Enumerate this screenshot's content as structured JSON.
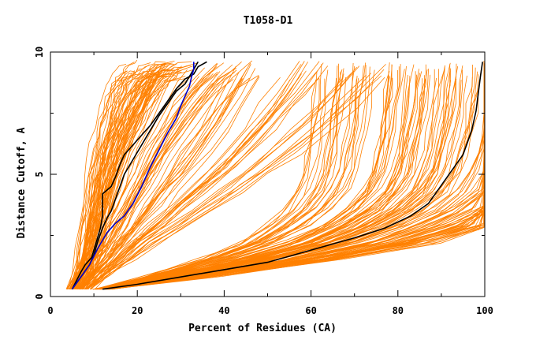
{
  "chart_data": {
    "type": "line",
    "title": "T1058-D1",
    "xlabel": "Percent of Residues (CA)",
    "ylabel": "Distance Cutoff, A",
    "xlim": [
      0,
      100
    ],
    "ylim": [
      0,
      10
    ],
    "x_ticks": [
      "0",
      "20",
      "40",
      "60",
      "80",
      "100"
    ],
    "y_ticks": [
      "0",
      "5",
      "10"
    ],
    "grid": false,
    "legend": "none",
    "colors": {
      "background_series": "#ff8000",
      "highlight_black": "#000000",
      "highlight_blue": "#0000cc"
    },
    "background_groups": [
      {
        "count": 50,
        "x": [
          6,
          8,
          9,
          10,
          11,
          12,
          13,
          14,
          15,
          16,
          17,
          18,
          19,
          20,
          21,
          22,
          23,
          25
        ],
        "y": [
          0.3,
          1.0,
          2.0,
          3.0,
          4.0,
          5.0,
          5.7,
          6.4,
          7.0,
          7.5,
          8.0,
          8.4,
          8.8,
          9.1,
          9.3,
          9.5,
          9.6,
          9.7
        ]
      },
      {
        "count": 40,
        "x": [
          6,
          8,
          10,
          12,
          14,
          16,
          18,
          20,
          22,
          25,
          28,
          31,
          34
        ],
        "y": [
          0.3,
          1.0,
          1.6,
          2.2,
          3.0,
          3.8,
          4.6,
          5.4,
          6.2,
          7.2,
          8.2,
          9.0,
          9.6
        ]
      },
      {
        "count": 35,
        "x": [
          8,
          12,
          16,
          20,
          25,
          30,
          35,
          40,
          45,
          50,
          55,
          60
        ],
        "y": [
          0.3,
          1.0,
          1.6,
          2.3,
          3.0,
          3.8,
          4.6,
          5.4,
          6.3,
          7.3,
          8.4,
          9.6
        ]
      },
      {
        "count": 130,
        "x": [
          12,
          30,
          50,
          65,
          75,
          82,
          87,
          89.5,
          91,
          92,
          93,
          93.5,
          94
        ],
        "y": [
          0.3,
          0.9,
          1.6,
          2.3,
          3.0,
          3.7,
          4.5,
          5.3,
          6.2,
          7.0,
          8.0,
          8.8,
          9.6
        ]
      }
    ],
    "series": [
      {
        "color": "#000000",
        "x": [
          12,
          20,
          30,
          40,
          50,
          60,
          70,
          77,
          83,
          87,
          89,
          91,
          93,
          95,
          96,
          97,
          98,
          98.5,
          99,
          99.5
        ],
        "y": [
          0.3,
          0.5,
          0.8,
          1.1,
          1.4,
          1.9,
          2.4,
          2.8,
          3.3,
          3.8,
          4.3,
          4.8,
          5.3,
          5.8,
          6.3,
          6.8,
          7.6,
          8.3,
          9.0,
          9.6
        ]
      },
      {
        "color": "#000000",
        "x": [
          5,
          7,
          8,
          9.5,
          10.5,
          11.5,
          12,
          12,
          14,
          15,
          16,
          17,
          18,
          20,
          21,
          23,
          25,
          27,
          29,
          31,
          33,
          34,
          36
        ],
        "y": [
          0.3,
          1.0,
          1.3,
          1.6,
          2.2,
          2.8,
          3.3,
          4.2,
          4.5,
          4.9,
          5.4,
          5.8,
          6.0,
          6.4,
          6.6,
          7.0,
          7.5,
          8.0,
          8.5,
          8.9,
          9.1,
          9.4,
          9.6
        ]
      },
      {
        "color": "#000000",
        "x": [
          5,
          7,
          9,
          10,
          11,
          12,
          13,
          14,
          15,
          16,
          17,
          18,
          19,
          21,
          23,
          25,
          27,
          29,
          31,
          32,
          33,
          34
        ],
        "y": [
          0.3,
          0.8,
          1.3,
          1.7,
          2.3,
          2.8,
          3.2,
          3.5,
          4.0,
          4.5,
          5.0,
          5.3,
          5.6,
          6.2,
          6.8,
          7.4,
          7.9,
          8.4,
          8.7,
          9.0,
          9.3,
          9.6
        ]
      },
      {
        "color": "#0000cc",
        "x": [
          5,
          7,
          9,
          11,
          13,
          15,
          17,
          19,
          21,
          23,
          25,
          27,
          29,
          30,
          31,
          32,
          32.5,
          33,
          33
        ],
        "y": [
          0.3,
          0.8,
          1.3,
          2.0,
          2.6,
          3.0,
          3.3,
          3.8,
          4.5,
          5.3,
          6.0,
          6.7,
          7.3,
          7.8,
          8.2,
          8.6,
          9.0,
          9.3,
          9.6
        ]
      }
    ]
  }
}
